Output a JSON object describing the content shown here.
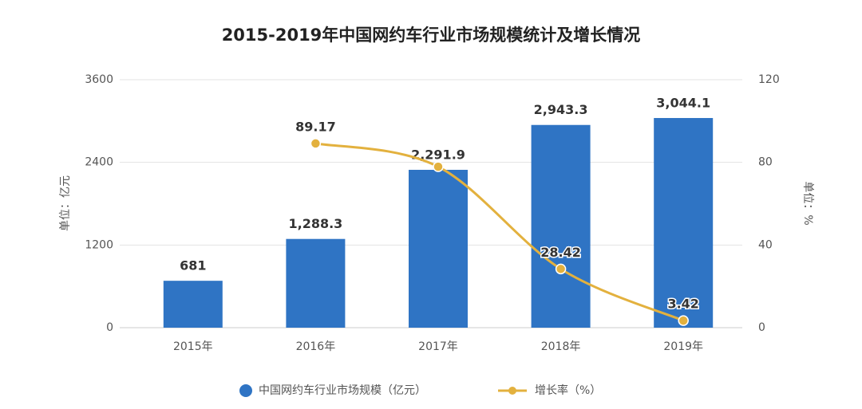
{
  "chart_data": {
    "type": "bar-line",
    "title": "2015-2019年中国网约车行业市场规模统计及增长情况",
    "categories": [
      "2015年",
      "2016年",
      "2017年",
      "2018年",
      "2019年"
    ],
    "series": [
      {
        "name": "中国网约车行业市场规模（亿元）",
        "type": "bar",
        "color": "#2f74c4",
        "values": [
          681,
          1288.3,
          2291.9,
          2943.3,
          3044.1
        ],
        "value_labels": [
          "681",
          "1,288.3",
          "2,291.9",
          "2,943.3",
          "3,044.1"
        ]
      },
      {
        "name": "增长率（%）",
        "type": "line",
        "axis": "y2",
        "color": "#e3b13e",
        "values": [
          null,
          89.17,
          77.9,
          28.42,
          3.42
        ],
        "value_labels": [
          null,
          "89.17",
          null,
          "28.42",
          "3.42"
        ]
      }
    ],
    "ylabel": "单位：亿元",
    "y2label": "单位：%",
    "ylim": [
      0,
      3600
    ],
    "yticks": [
      0,
      1200,
      2400,
      3600
    ],
    "y2lim": [
      0,
      120
    ],
    "y2ticks": [
      0,
      40,
      80,
      120
    ],
    "grid": true,
    "legend": "bottom"
  }
}
